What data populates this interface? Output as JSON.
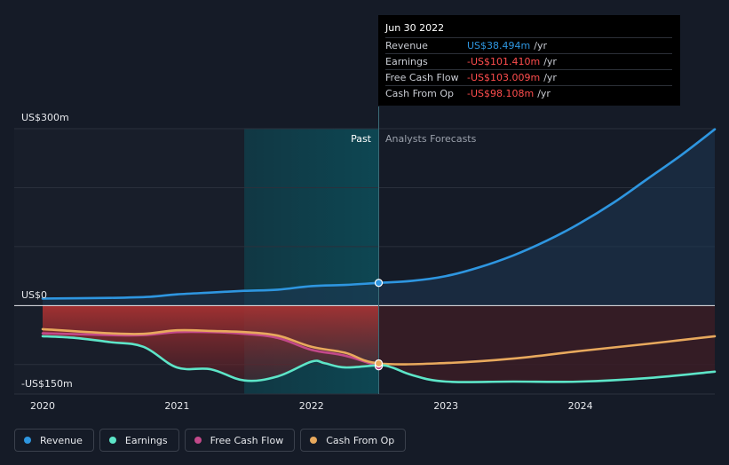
{
  "chart_data": {
    "type": "line",
    "y_axis_labels": [
      "US$300m",
      "US$0",
      "-US$150m"
    ],
    "x_tick_labels": [
      "2020",
      "2021",
      "2022",
      "2023",
      "2024"
    ],
    "ylim": [
      -150,
      300
    ],
    "region_labels": {
      "past": "Past",
      "forecast": "Analysts Forecasts"
    },
    "divider_x": 2022.5,
    "highlight_start_x": 2021.5,
    "series": [
      {
        "name": "Revenue",
        "color": "#2e96e0",
        "points": [
          [
            2020.0,
            12
          ],
          [
            2020.5,
            13
          ],
          [
            2020.8,
            15
          ],
          [
            2021.0,
            19
          ],
          [
            2021.25,
            22
          ],
          [
            2021.5,
            25
          ],
          [
            2021.75,
            27
          ],
          [
            2022.0,
            33
          ],
          [
            2022.25,
            35
          ],
          [
            2022.5,
            38.494
          ],
          [
            2022.75,
            42
          ],
          [
            2023.0,
            50
          ],
          [
            2023.25,
            65
          ],
          [
            2023.5,
            85
          ],
          [
            2023.75,
            110
          ],
          [
            2024.0,
            140
          ],
          [
            2024.25,
            175
          ],
          [
            2024.5,
            215
          ],
          [
            2024.75,
            255
          ],
          [
            2025.0,
            299
          ]
        ]
      },
      {
        "name": "Earnings",
        "color": "#5de5c8",
        "points": [
          [
            2020.0,
            -52
          ],
          [
            2020.25,
            -55
          ],
          [
            2020.5,
            -62
          ],
          [
            2020.75,
            -70
          ],
          [
            2021.0,
            -105
          ],
          [
            2021.25,
            -108
          ],
          [
            2021.5,
            -127
          ],
          [
            2021.75,
            -120
          ],
          [
            2022.0,
            -95
          ],
          [
            2022.1,
            -98
          ],
          [
            2022.25,
            -105
          ],
          [
            2022.5,
            -101.41
          ],
          [
            2022.6,
            -105
          ],
          [
            2022.75,
            -118
          ],
          [
            2023.0,
            -129
          ],
          [
            2023.5,
            -129
          ],
          [
            2024.0,
            -129
          ],
          [
            2024.5,
            -123
          ],
          [
            2025.0,
            -112
          ]
        ]
      },
      {
        "name": "Free Cash Flow",
        "color": "#c2498a",
        "points": [
          [
            2020.0,
            -47
          ],
          [
            2020.5,
            -50
          ],
          [
            2020.75,
            -50
          ],
          [
            2021.0,
            -45
          ],
          [
            2021.25,
            -45
          ],
          [
            2021.5,
            -48
          ],
          [
            2021.75,
            -55
          ],
          [
            2022.0,
            -75
          ],
          [
            2022.25,
            -85
          ],
          [
            2022.5,
            -103.009
          ]
        ]
      },
      {
        "name": "Cash From Op",
        "color": "#e8a95d",
        "points": [
          [
            2020.0,
            -40
          ],
          [
            2020.5,
            -47
          ],
          [
            2020.75,
            -48
          ],
          [
            2021.0,
            -42
          ],
          [
            2021.25,
            -43
          ],
          [
            2021.5,
            -45
          ],
          [
            2021.75,
            -51
          ],
          [
            2022.0,
            -70
          ],
          [
            2022.25,
            -80
          ],
          [
            2022.5,
            -98.108
          ],
          [
            2023.0,
            -97.5
          ],
          [
            2023.5,
            -90
          ],
          [
            2024.0,
            -77
          ],
          [
            2024.5,
            -65
          ],
          [
            2025.0,
            -52
          ]
        ]
      }
    ],
    "tooltip": {
      "date": "Jun 30 2022",
      "rows": [
        {
          "name": "Revenue",
          "value": "US$38.494m",
          "unit": "/yr",
          "color": "#2e96e0"
        },
        {
          "name": "Earnings",
          "value": "-US$101.410m",
          "unit": "/yr",
          "color": "#ff4d4d"
        },
        {
          "name": "Free Cash Flow",
          "value": "-US$103.009m",
          "unit": "/yr",
          "color": "#ff4d4d"
        },
        {
          "name": "Cash From Op",
          "value": "-US$98.108m",
          "unit": "/yr",
          "color": "#ff4d4d"
        }
      ]
    },
    "legend": [
      {
        "label": "Revenue",
        "color": "#2e96e0"
      },
      {
        "label": "Earnings",
        "color": "#5de5c8"
      },
      {
        "label": "Free Cash Flow",
        "color": "#c2498a"
      },
      {
        "label": "Cash From Op",
        "color": "#e8a95d"
      }
    ]
  }
}
